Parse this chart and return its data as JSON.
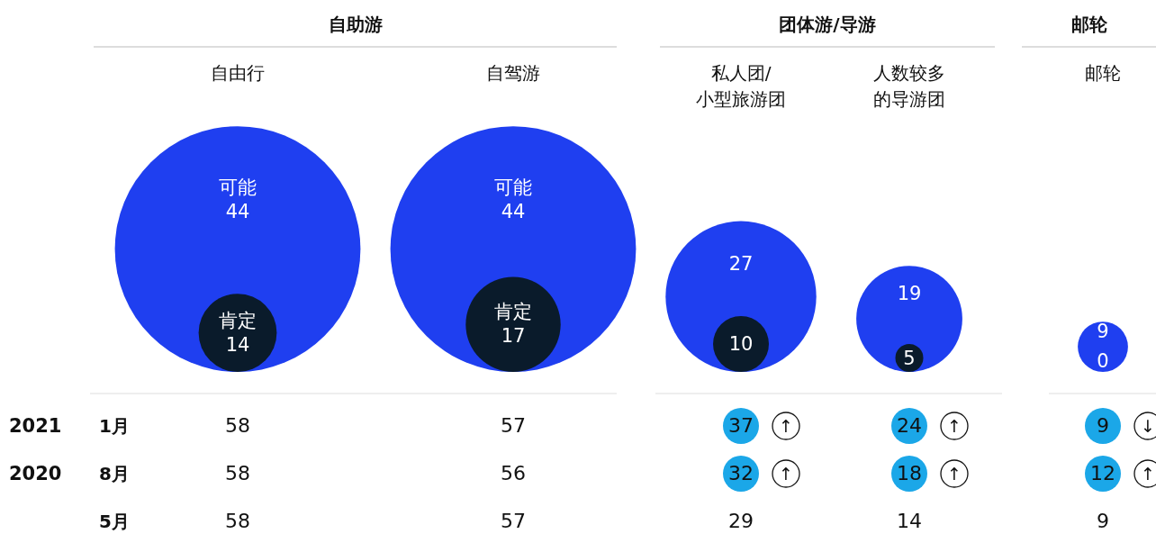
{
  "chart_data": {
    "type": "other",
    "categories": [
      "自由行",
      "自驾游",
      "私人团/小型旅游团",
      "人数较多的导游团",
      "邮轮"
    ],
    "series": [
      {
        "type": "bubble",
        "color": "#1f3ff0",
        "values": [
          44,
          44,
          27,
          19,
          9
        ],
        "value_labels": [
          "可能 44",
          "可能 44",
          "27",
          "19",
          "9"
        ]
      },
      {
        "type": "bubble",
        "color": "#0a1b2b",
        "values": [
          14,
          17,
          10,
          5,
          0
        ],
        "value_labels": [
          "肯定 14",
          "肯定 17",
          "10",
          "5",
          "0"
        ]
      },
      {
        "values": [
          58,
          57,
          37,
          24,
          9
        ],
        "colors": [
          null,
          null,
          "#1ba7e8",
          "#1ba7e8",
          "#1ba7e8"
        ]
      },
      {
        "values": [
          58,
          56,
          32,
          18,
          12
        ],
        "colors": [
          null,
          null,
          "#1ba7e8",
          "#1ba7e8",
          "#1ba7e8"
        ]
      },
      {
        "values": [
          58,
          57,
          29,
          14,
          9
        ]
      }
    ],
    "data_labels": true,
    "annotations": [
      "自助游",
      "团体游/导游",
      "邮轮",
      "2021",
      "2020",
      "1月",
      "8月",
      "5月",
      "↑",
      "↑",
      "↓",
      "↑",
      "↑",
      "↑"
    ]
  }
}
